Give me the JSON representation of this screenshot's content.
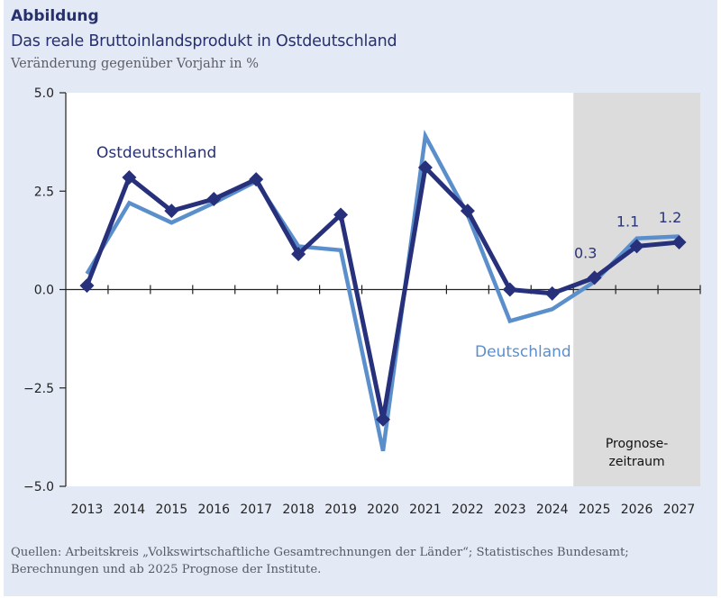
{
  "header": {
    "label": "Abbildung",
    "title": "Das reale Bruttoinlandsprodukt in Ostdeutschland",
    "subtitle": "Veränderung gegenüber Vorjahr in %"
  },
  "source": {
    "line1": "Quellen:  Arbeitskreis „Volkswirtschaftliche Gesamtrechnungen der Länder“; Statistisches Bundesamt;",
    "line2": "Berechnungen und ab 2025 Prognose der Institute."
  },
  "colors": {
    "background_panel": "#e3eaf6",
    "plot_background": "#ffffff",
    "forecast_shade": "#dcdcdc",
    "ostdeutschland": "#27307a",
    "deutschland": "#5b8fcc"
  },
  "chart_data": {
    "type": "line",
    "title": "Das reale Bruttoinlandsprodukt in Ostdeutschland",
    "subtitle": "Veränderung gegenüber Vorjahr in %",
    "xlabel": "",
    "ylabel": "",
    "categories": [
      "2013",
      "2014",
      "2015",
      "2016",
      "2017",
      "2018",
      "2019",
      "2020",
      "2021",
      "2022",
      "2023",
      "2024",
      "2025",
      "2026",
      "2027"
    ],
    "ylim": [
      -5.0,
      5.0
    ],
    "yticks": [
      5.0,
      2.5,
      0.0,
      -2.5,
      -5.0
    ],
    "ytick_labels": [
      "5.0",
      "2.5",
      "0.0",
      "−2.5",
      "−5.0"
    ],
    "grid": false,
    "legend": "inline labels",
    "series": [
      {
        "name": "Ostdeutschland",
        "label": "Ostdeutschland",
        "markers": "diamond",
        "values": [
          0.1,
          2.85,
          2.0,
          2.3,
          2.8,
          0.9,
          1.9,
          -3.3,
          3.1,
          2.0,
          0.0,
          -0.1,
          0.3,
          1.1,
          1.2
        ]
      },
      {
        "name": "Deutschland",
        "label": "Deutschland",
        "markers": "none",
        "values": [
          0.4,
          2.2,
          1.7,
          2.2,
          2.75,
          1.1,
          1.0,
          -4.1,
          3.9,
          1.9,
          -0.8,
          -0.5,
          0.2,
          1.3,
          1.35
        ]
      }
    ],
    "forecast_region": {
      "from": "2025",
      "to": "2027",
      "label_line1": "Prognose-",
      "label_line2": "zeitraum"
    },
    "annotations": [
      {
        "category": "2025",
        "series": "Ostdeutschland",
        "text": "0.3"
      },
      {
        "category": "2026",
        "series": "Ostdeutschland",
        "text": "1.1"
      },
      {
        "category": "2027",
        "series": "Ostdeutschland",
        "text": "1.2"
      }
    ]
  }
}
